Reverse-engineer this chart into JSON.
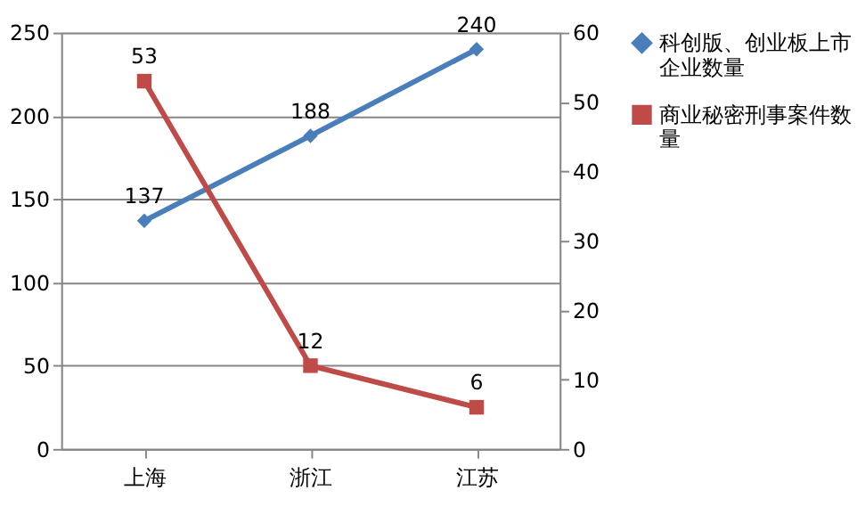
{
  "chart_data": {
    "type": "line",
    "categories": [
      "上海",
      "浙江",
      "江苏"
    ],
    "series": [
      {
        "name": "科创版、创业板上市企业数量",
        "color": "#4a7ebb",
        "values": [
          137,
          188,
          240
        ],
        "marker": "diamond",
        "axis": "y"
      },
      {
        "name": "商业秘密刑事案件数量",
        "color": "#be4b48",
        "values": [
          53,
          12,
          6
        ],
        "marker": "square",
        "axis": "y2"
      }
    ],
    "ylim": [
      0,
      250
    ],
    "yticks": [
      0,
      50,
      100,
      150,
      200,
      250
    ],
    "y2lim": [
      0,
      60
    ],
    "y2ticks": [
      0,
      10,
      20,
      30,
      40,
      50,
      60
    ],
    "grid": "y",
    "legend": "right",
    "data_labels": true
  }
}
